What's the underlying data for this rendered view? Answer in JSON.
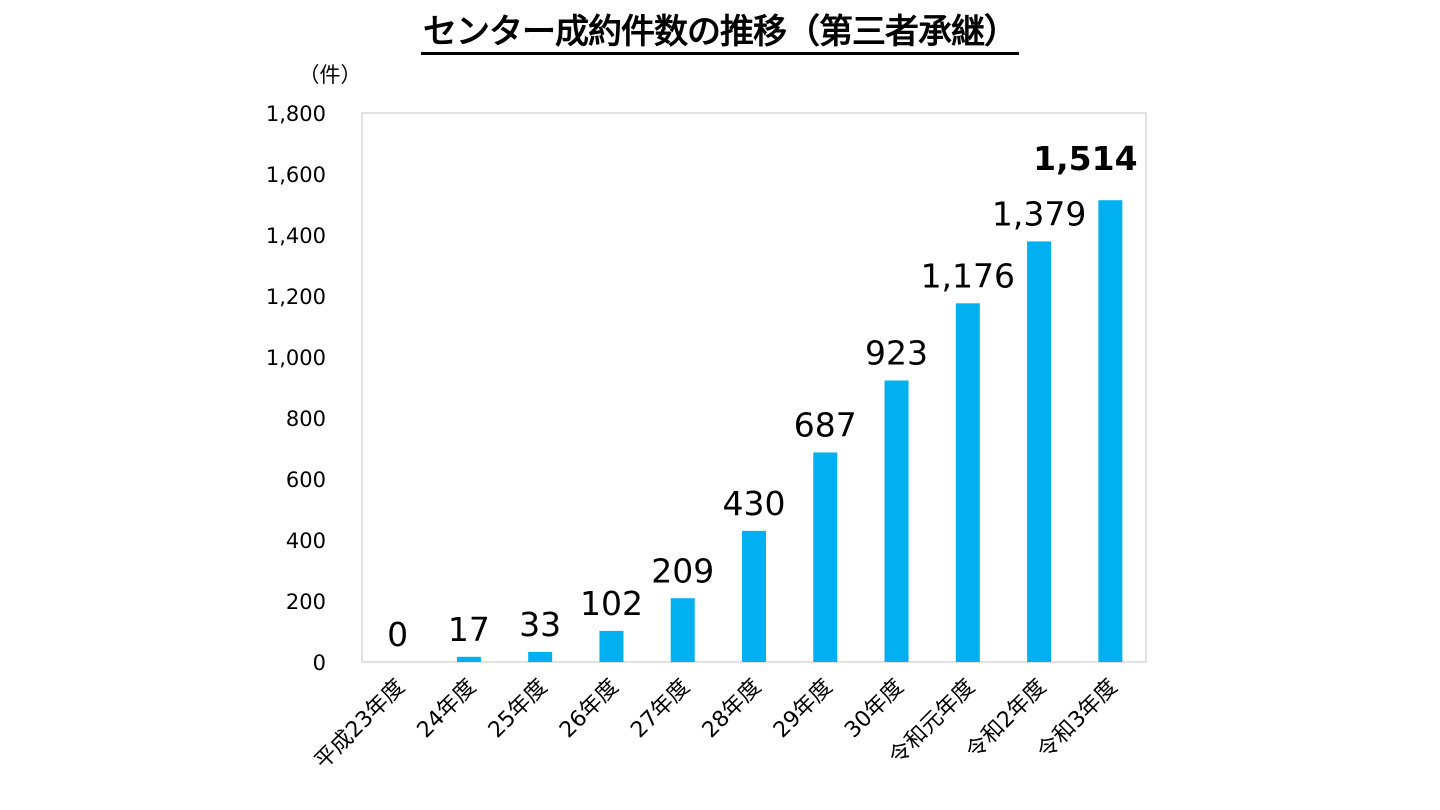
{
  "chart_data": {
    "type": "bar",
    "title": "センター成約件数の推移（第三者承継）",
    "ylabel": "（件）",
    "xlabel": "",
    "ylim": [
      0,
      1800
    ],
    "yticks": [
      0,
      200,
      400,
      600,
      800,
      1000,
      1200,
      1400,
      1600,
      1800
    ],
    "ytick_labels": [
      "0",
      "200",
      "400",
      "600",
      "800",
      "1,000",
      "1,200",
      "1,400",
      "1,600",
      "1,800"
    ],
    "categories": [
      "平成23年度",
      "24年度",
      "25年度",
      "26年度",
      "27年度",
      "28年度",
      "29年度",
      "30年度",
      "令和元年度",
      "令和2年度",
      "令和3年度"
    ],
    "values": [
      0,
      17,
      33,
      102,
      209,
      430,
      687,
      923,
      1176,
      1379,
      1514
    ],
    "data_labels": [
      "0",
      "17",
      "33",
      "102",
      "209",
      "430",
      "687",
      "923",
      "1,176",
      "1,379",
      "1,514"
    ],
    "grid": false,
    "legend": "none",
    "bar_color": "#00B0F0",
    "highlight_last_label": true
  }
}
